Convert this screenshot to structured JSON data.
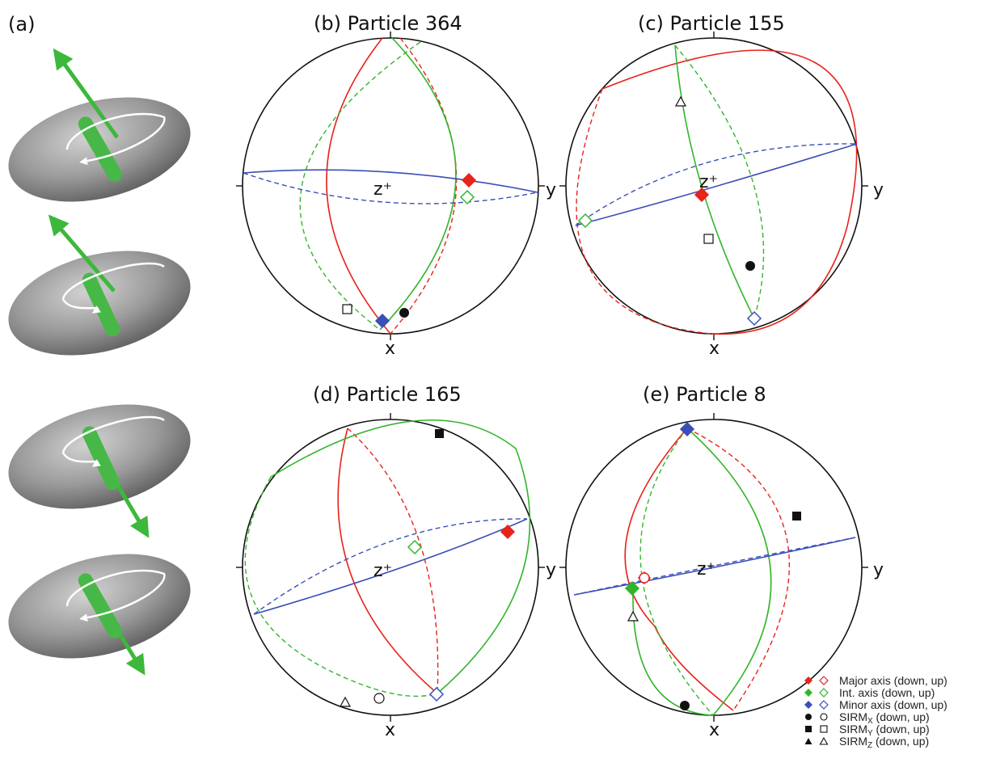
{
  "panel_a": {
    "label": "(a)"
  },
  "panels": [
    {
      "id": "b",
      "title": "(b) Particle 364",
      "axis_labels": {
        "x": "x",
        "y": "y",
        "z": "z⁺"
      },
      "great_circles": [
        {
          "axis": "major",
          "style": "solid"
        },
        {
          "axis": "major",
          "style": "dashed"
        },
        {
          "axis": "int",
          "style": "solid"
        },
        {
          "axis": "int",
          "style": "dashed"
        },
        {
          "axis": "minor",
          "style": "solid"
        },
        {
          "axis": "minor",
          "style": "dashed"
        }
      ],
      "points": [
        {
          "type": "major-axis",
          "hemisphere": "down"
        },
        {
          "type": "int-axis",
          "hemisphere": "up"
        },
        {
          "type": "minor-axis",
          "hemisphere": "down"
        },
        {
          "type": "sirm-x",
          "hemisphere": "down"
        },
        {
          "type": "sirm-y",
          "hemisphere": "up"
        }
      ]
    },
    {
      "id": "c",
      "title": "(c) Particle 155",
      "axis_labels": {
        "x": "x",
        "y": "y",
        "z": "z⁺"
      },
      "points": [
        {
          "type": "major-axis",
          "hemisphere": "down"
        },
        {
          "type": "int-axis",
          "hemisphere": "up"
        },
        {
          "type": "minor-axis",
          "hemisphere": "up"
        },
        {
          "type": "sirm-x",
          "hemisphere": "down"
        },
        {
          "type": "sirm-y",
          "hemisphere": "up"
        },
        {
          "type": "sirm-z",
          "hemisphere": "up"
        }
      ]
    },
    {
      "id": "d",
      "title": "(d) Particle 165",
      "axis_labels": {
        "x": "x",
        "y": "y",
        "z": "z⁺"
      },
      "points": [
        {
          "type": "major-axis",
          "hemisphere": "down"
        },
        {
          "type": "int-axis",
          "hemisphere": "up"
        },
        {
          "type": "minor-axis",
          "hemisphere": "up"
        },
        {
          "type": "sirm-x",
          "hemisphere": "up"
        },
        {
          "type": "sirm-y",
          "hemisphere": "down"
        },
        {
          "type": "sirm-z",
          "hemisphere": "up"
        }
      ]
    },
    {
      "id": "e",
      "title": "(e) Particle 8",
      "axis_labels": {
        "x": "x",
        "y": "y",
        "z": "z⁺"
      },
      "points": [
        {
          "type": "major-axis",
          "hemisphere": "up"
        },
        {
          "type": "int-axis",
          "hemisphere": "down"
        },
        {
          "type": "minor-axis",
          "hemisphere": "down"
        },
        {
          "type": "sirm-x",
          "hemisphere": "down"
        },
        {
          "type": "sirm-y",
          "hemisphere": "down"
        },
        {
          "type": "sirm-z",
          "hemisphere": "up"
        }
      ]
    }
  ],
  "legend": {
    "major": "Major axis (down, up)",
    "int": "Int. axis (down, up)",
    "minor": "Minor axis (down, up)",
    "sirm_x": {
      "prefix": "SIRM",
      "sub": "X",
      "suffix": " (down, up)"
    },
    "sirm_y": {
      "prefix": "SIRM",
      "sub": "Y",
      "suffix": " (down, up)"
    },
    "sirm_z": {
      "prefix": "SIRM",
      "sub": "Z",
      "suffix": " (down, up)"
    }
  },
  "colors": {
    "major": "#e8231c",
    "int": "#33b52b",
    "minor": "#3b4fb8",
    "sirm": "#111111",
    "particle": "#8a8a8a"
  }
}
